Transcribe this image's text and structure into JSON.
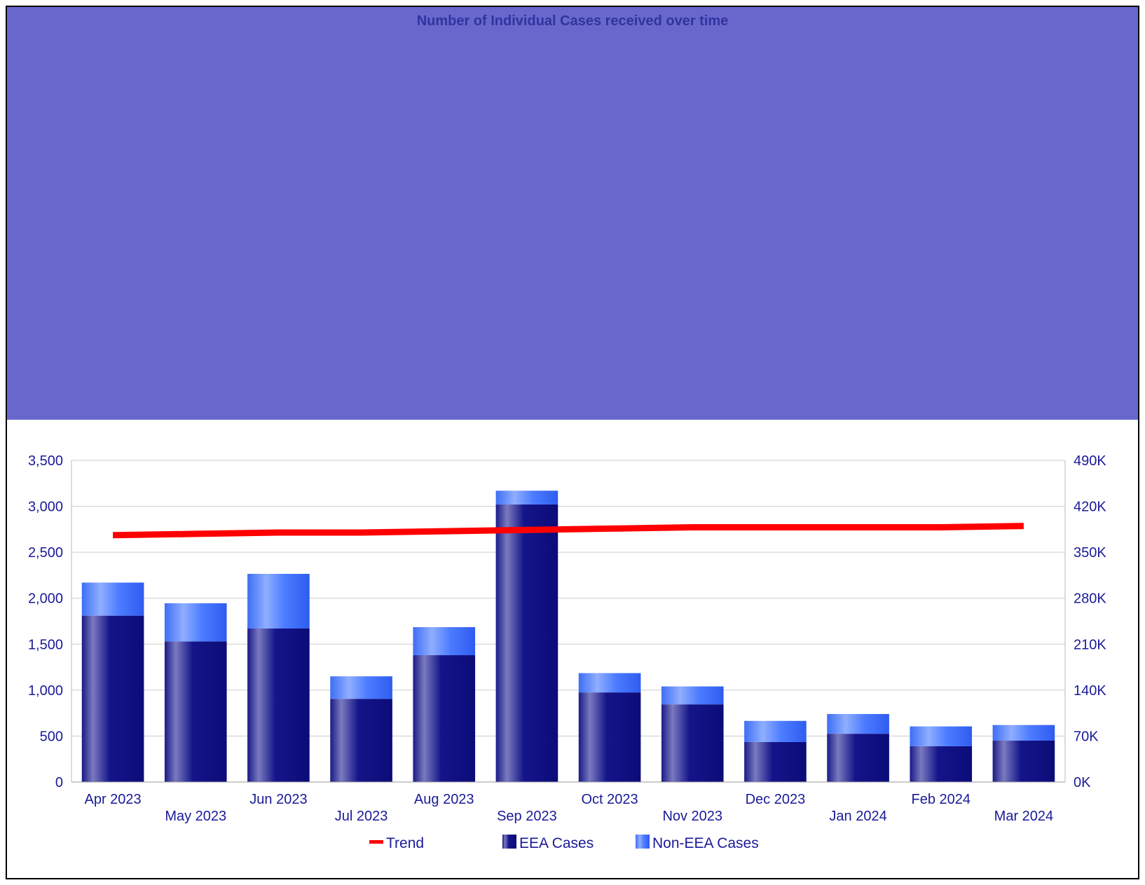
{
  "colors": {
    "banner": "#6868CC",
    "title": "#3333A0",
    "axis_text": "#1A1A99",
    "eea": "#0D0D80",
    "non_eea": "#4B7CFF",
    "trend": "#FF0000",
    "grid": "#CCCCCC"
  },
  "chart_data": {
    "type": "bar",
    "stacked": true,
    "title": "Number of Individual Cases received over time",
    "categories": [
      "Apr 2023",
      "May 2023",
      "Jun 2023",
      "Jul 2023",
      "Aug 2023",
      "Sep 2023",
      "Oct 2023",
      "Nov 2023",
      "Dec 2023",
      "Jan 2024",
      "Feb 2024",
      "Mar 2024"
    ],
    "series": [
      {
        "name": "EEA Cases",
        "type": "bar",
        "axis": "left",
        "values": [
          1810,
          1530,
          1670,
          905,
          1380,
          3020,
          975,
          845,
          435,
          525,
          390,
          450
        ]
      },
      {
        "name": "Non-EEA Cases",
        "type": "bar",
        "axis": "left",
        "values": [
          360,
          415,
          595,
          245,
          305,
          150,
          210,
          195,
          230,
          215,
          215,
          170
        ]
      },
      {
        "name": "Trend",
        "type": "line",
        "axis": "right",
        "values": [
          376000,
          378000,
          380000,
          380000,
          382000,
          384000,
          386000,
          388000,
          388000,
          388000,
          388000,
          390000
        ]
      }
    ],
    "y_left": {
      "min": 0,
      "max": 3500,
      "ticks": [
        0,
        500,
        1000,
        1500,
        2000,
        2500,
        3000,
        3500
      ],
      "tick_labels": [
        "0",
        "500",
        "1,000",
        "1,500",
        "2,000",
        "2,500",
        "3,000",
        "3,500"
      ]
    },
    "y_right": {
      "min": 0,
      "max": 490000,
      "ticks": [
        0,
        70000,
        140000,
        210000,
        280000,
        350000,
        420000,
        490000
      ],
      "tick_labels": [
        "0K",
        "70K",
        "140K",
        "210K",
        "280K",
        "350K",
        "420K",
        "490K"
      ]
    },
    "grid": true,
    "legend_position": "bottom",
    "legend": [
      "Trend",
      "EEA Cases",
      "Non-EEA Cases"
    ]
  }
}
